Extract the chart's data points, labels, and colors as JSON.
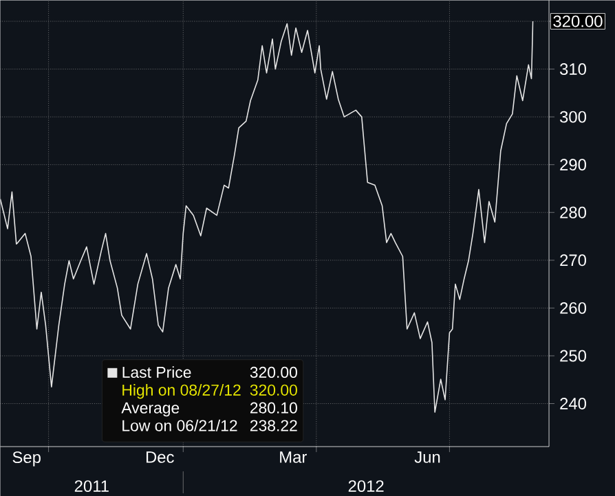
{
  "chart_data": {
    "type": "line",
    "x": [
      "2011-08-29",
      "2011-09-03",
      "2011-09-06",
      "2011-09-09",
      "2011-09-10",
      "2011-09-15",
      "2011-09-19",
      "2011-09-23",
      "2011-09-26",
      "2011-09-29",
      "2011-10-03",
      "2011-10-08",
      "2011-10-12",
      "2011-10-15",
      "2011-10-18",
      "2011-10-23",
      "2011-10-27",
      "2011-11-01",
      "2011-11-06",
      "2011-11-09",
      "2011-11-12",
      "2011-11-17",
      "2011-11-20",
      "2011-11-26",
      "2011-12-01",
      "2011-12-07",
      "2011-12-11",
      "2011-12-15",
      "2011-12-18",
      "2011-12-22",
      "2011-12-27",
      "2011-12-30",
      "2012-01-01",
      "2012-01-03",
      "2012-01-08",
      "2012-01-13",
      "2012-01-17",
      "2012-01-24",
      "2012-01-29",
      "2012-02-01",
      "2012-02-05",
      "2012-02-08",
      "2012-02-13",
      "2012-02-16",
      "2012-02-21",
      "2012-02-24",
      "2012-02-27",
      "2012-03-02",
      "2012-03-04",
      "2012-03-08",
      "2012-03-12",
      "2012-03-15",
      "2012-03-18",
      "2012-03-22",
      "2012-03-26",
      "2012-03-31",
      "2012-04-03",
      "2012-04-04",
      "2012-04-08",
      "2012-04-12",
      "2012-04-16",
      "2012-04-20",
      "2012-04-28",
      "2012-05-02",
      "2012-05-06",
      "2012-05-11",
      "2012-05-16",
      "2012-05-19",
      "2012-05-22",
      "2012-05-25",
      "2012-05-30",
      "2012-06-02",
      "2012-06-07",
      "2012-06-11",
      "2012-06-16",
      "2012-06-19",
      "2012-06-21",
      "2012-06-25",
      "2012-06-28",
      "2012-07-01",
      "2012-07-03",
      "2012-07-05",
      "2012-07-08",
      "2012-07-11",
      "2012-07-14",
      "2012-07-17",
      "2012-07-21",
      "2012-07-25",
      "2012-07-28",
      "2012-08-01",
      "2012-08-05",
      "2012-08-09",
      "2012-08-13",
      "2012-08-16",
      "2012-08-20",
      "2012-08-24",
      "2012-08-26",
      "2012-08-27"
    ],
    "series": [
      {
        "name": "Last Price",
        "color": "#e6e6e6",
        "values": [
          282.8,
          276.6,
          284.3,
          273.4,
          273.7,
          275.6,
          270.8,
          255.6,
          263.3,
          256.4,
          243.5,
          256.4,
          265.0,
          269.9,
          266.1,
          269.9,
          272.8,
          265.0,
          271.9,
          275.6,
          269.9,
          264.2,
          258.5,
          255.6,
          265.0,
          271.4,
          266.1,
          256.4,
          255.0,
          264.2,
          269.1,
          266.1,
          275.6,
          281.4,
          279.4,
          275.1,
          280.9,
          279.4,
          285.7,
          285.1,
          292.0,
          297.7,
          299.1,
          303.4,
          307.7,
          314.9,
          309.2,
          316.3,
          310.0,
          315.8,
          319.5,
          312.9,
          318.6,
          313.5,
          318.1,
          309.2,
          314.9,
          310.0,
          303.7,
          309.5,
          303.7,
          300.0,
          301.4,
          300.0,
          286.3,
          285.7,
          281.4,
          273.7,
          275.6,
          273.7,
          270.8,
          255.6,
          259.0,
          253.6,
          257.1,
          252.8,
          238.2,
          245.1,
          240.8,
          254.8,
          255.6,
          265.0,
          261.8,
          266.1,
          269.9,
          275.6,
          284.8,
          273.7,
          282.3,
          278.0,
          292.9,
          298.6,
          300.6,
          308.6,
          303.4,
          310.9,
          308.0,
          320.0
        ]
      }
    ],
    "xlim": [
      "2011-08-29",
      "2012-09-07"
    ],
    "xticks": [
      {
        "value": "2011-10-01",
        "label": null
      },
      {
        "value": "2012-01-01",
        "label": null
      },
      {
        "value": "2012-04-01",
        "label": null
      },
      {
        "value": "2012-07-01",
        "label": null
      },
      {
        "value": "2011-09-16",
        "label": "Sep"
      },
      {
        "value": "2011-12-16",
        "label": "Dec"
      },
      {
        "value": "2012-03-16",
        "label": "Mar"
      },
      {
        "value": "2012-06-16",
        "label": "Jun"
      }
    ],
    "ylim": [
      231,
      324.4
    ],
    "yticks": [
      240,
      250,
      260,
      270,
      280,
      290,
      300,
      310,
      {
        "value": 320,
        "label": null
      }
    ],
    "grid": true,
    "legend": "bottom left",
    "annotations": [
      "320.00",
      "320.00",
      "High on 08/27/12",
      "320.00",
      "Average",
      "280.10",
      "Low on 06/21/12",
      "238.22",
      "2011",
      "2012"
    ]
  }
}
